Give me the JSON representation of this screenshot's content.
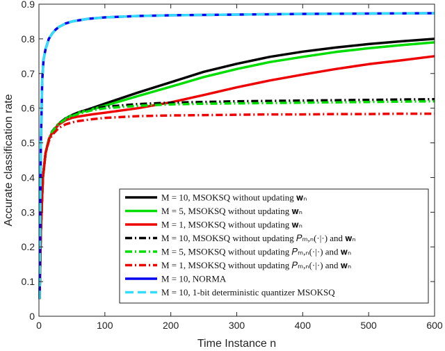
{
  "chart_data": {
    "type": "line",
    "xlabel": "Time Instance n",
    "ylabel": "Accurate classification rate",
    "xlim": [
      0,
      600
    ],
    "ylim": [
      0,
      0.9
    ],
    "xticks": [
      "0",
      "100",
      "200",
      "300",
      "400",
      "500",
      "600"
    ],
    "yticks": [
      "0",
      "0.1",
      "0.2",
      "0.3",
      "0.4",
      "0.5",
      "0.6",
      "0.7",
      "0.8",
      "0.9"
    ],
    "grid": false,
    "legend_position": "bottom-right",
    "series": [
      {
        "name": "M = 10, MSOKSQ without updating w_n",
        "label": "M = 10, MSOKSQ without updating 𝐰ₙ",
        "color": "#000000",
        "dash": "solid",
        "x": [
          1,
          3,
          6,
          10,
          15,
          20,
          30,
          40,
          50,
          60,
          80,
          100,
          150,
          200,
          250,
          300,
          350,
          400,
          450,
          500,
          550,
          600
        ],
        "y": [
          0.05,
          0.25,
          0.4,
          0.47,
          0.51,
          0.53,
          0.555,
          0.57,
          0.58,
          0.588,
          0.6,
          0.613,
          0.645,
          0.675,
          0.705,
          0.728,
          0.748,
          0.763,
          0.775,
          0.785,
          0.793,
          0.8
        ]
      },
      {
        "name": "M = 5, MSOKSQ without updating w_n",
        "label": "M = 5, MSOKSQ without updating 𝐰ₙ",
        "color": "#00dd00",
        "dash": "solid",
        "x": [
          1,
          3,
          6,
          10,
          15,
          20,
          30,
          40,
          50,
          60,
          80,
          100,
          150,
          200,
          250,
          300,
          350,
          400,
          450,
          500,
          550,
          600
        ],
        "y": [
          0.05,
          0.25,
          0.4,
          0.47,
          0.51,
          0.53,
          0.555,
          0.57,
          0.58,
          0.587,
          0.597,
          0.607,
          0.635,
          0.662,
          0.69,
          0.713,
          0.733,
          0.748,
          0.762,
          0.773,
          0.782,
          0.79
        ]
      },
      {
        "name": "M = 1, MSOKSQ without updating w_n",
        "label": "M = 1, MSOKSQ without updating 𝐰ₙ",
        "color": "#ee0000",
        "dash": "solid",
        "x": [
          1,
          3,
          6,
          10,
          15,
          20,
          30,
          40,
          50,
          60,
          80,
          100,
          150,
          200,
          250,
          300,
          350,
          400,
          450,
          500,
          550,
          600
        ],
        "y": [
          0.05,
          0.25,
          0.4,
          0.47,
          0.51,
          0.53,
          0.553,
          0.565,
          0.572,
          0.576,
          0.582,
          0.587,
          0.6,
          0.617,
          0.638,
          0.66,
          0.68,
          0.697,
          0.713,
          0.727,
          0.738,
          0.75
        ]
      },
      {
        "name": "M = 10, MSOKSQ without updating P_{m,n}(·|·) and w_n",
        "label": "M = 10, MSOKSQ without updating 𝑃ₘ,ₙ(·|·) and 𝐰ₙ",
        "color": "#000000",
        "dash": "dashdot",
        "x": [
          1,
          3,
          6,
          10,
          15,
          20,
          30,
          40,
          50,
          60,
          80,
          100,
          150,
          200,
          250,
          300,
          350,
          400,
          450,
          500,
          550,
          600
        ],
        "y": [
          0.05,
          0.25,
          0.4,
          0.47,
          0.51,
          0.533,
          0.556,
          0.57,
          0.58,
          0.588,
          0.598,
          0.604,
          0.612,
          0.616,
          0.618,
          0.62,
          0.621,
          0.622,
          0.623,
          0.624,
          0.625,
          0.626
        ]
      },
      {
        "name": "M = 5, MSOKSQ without updating P_{m,n}(·|·) and w_n",
        "label": "M = 5, MSOKSQ without updating 𝑃ₘ,ₙ(·|·) and 𝐰ₙ",
        "color": "#00dd00",
        "dash": "dashdot",
        "x": [
          1,
          3,
          6,
          10,
          15,
          20,
          30,
          40,
          50,
          60,
          80,
          100,
          150,
          200,
          250,
          300,
          350,
          400,
          450,
          500,
          550,
          600
        ],
        "y": [
          0.05,
          0.25,
          0.4,
          0.47,
          0.51,
          0.532,
          0.555,
          0.568,
          0.577,
          0.584,
          0.594,
          0.6,
          0.607,
          0.611,
          0.613,
          0.614,
          0.615,
          0.616,
          0.617,
          0.618,
          0.619,
          0.62
        ]
      },
      {
        "name": "M = 1, MSOKSQ without updating P_{m,n}(·|·) and w_n",
        "label": "M = 1, MSOKSQ without updating 𝑃ₘ,ₙ(·|·) and 𝐰ₙ",
        "color": "#ee0000",
        "dash": "dashdot",
        "x": [
          1,
          3,
          6,
          10,
          15,
          20,
          30,
          40,
          50,
          60,
          80,
          100,
          150,
          200,
          250,
          300,
          350,
          400,
          450,
          500,
          550,
          600
        ],
        "y": [
          0.05,
          0.25,
          0.4,
          0.47,
          0.505,
          0.523,
          0.543,
          0.553,
          0.559,
          0.563,
          0.568,
          0.572,
          0.577,
          0.579,
          0.58,
          0.581,
          0.582,
          0.582,
          0.583,
          0.583,
          0.584,
          0.584
        ]
      },
      {
        "name": "M = 10, NORMA",
        "label": "M = 10, NORMA",
        "color": "#0000ee",
        "dash": "solid",
        "x": [
          1,
          2,
          3,
          5,
          7,
          10,
          15,
          20,
          25,
          30,
          40,
          50,
          75,
          100,
          150,
          200,
          300,
          400,
          500,
          600
        ],
        "y": [
          0.05,
          0.3,
          0.5,
          0.68,
          0.74,
          0.77,
          0.8,
          0.815,
          0.826,
          0.834,
          0.844,
          0.85,
          0.858,
          0.862,
          0.866,
          0.868,
          0.87,
          0.872,
          0.873,
          0.874
        ]
      },
      {
        "name": "M = 10, 1-bit deterministic quantizer MSOKSQ",
        "label": "M = 10, 1-bit deterministic quantizer MSOKSQ",
        "color": "#33ddff",
        "dash": "dashed",
        "x": [
          1,
          2,
          3,
          5,
          7,
          10,
          15,
          20,
          25,
          30,
          40,
          50,
          75,
          100,
          150,
          200,
          300,
          400,
          500,
          600
        ],
        "y": [
          0.05,
          0.3,
          0.5,
          0.68,
          0.74,
          0.77,
          0.8,
          0.815,
          0.826,
          0.834,
          0.844,
          0.85,
          0.858,
          0.862,
          0.866,
          0.868,
          0.87,
          0.872,
          0.873,
          0.874
        ]
      }
    ]
  }
}
